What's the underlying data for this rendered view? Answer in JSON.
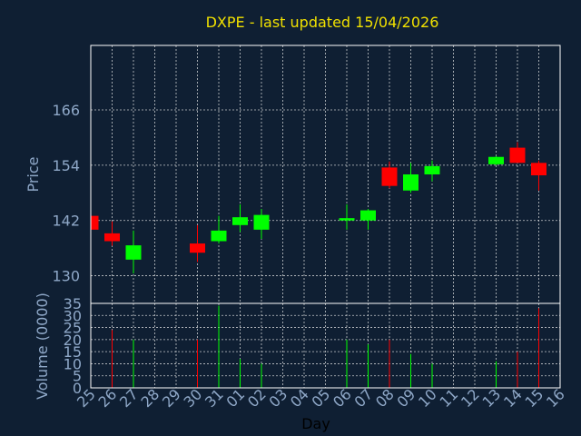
{
  "chart_data": {
    "type": "candlestick",
    "title": "DXPE - last updated 15/04/2026",
    "xlabel": "Day",
    "price_panel": {
      "ylabel": "Price",
      "ylim": [
        124,
        180
      ],
      "yticks": [
        130,
        142,
        154,
        166
      ]
    },
    "volume_panel": {
      "ylabel": "Volume (0000)",
      "ylim": [
        0,
        35
      ],
      "yticks": [
        0,
        5,
        10,
        15,
        20,
        25,
        30,
        35
      ]
    },
    "x_tick_labels": [
      "25",
      "26",
      "27",
      "28",
      "29",
      "30",
      "31",
      "01",
      "02",
      "03",
      "04",
      "05",
      "06",
      "07",
      "08",
      "09",
      "10",
      "11",
      "12",
      "13",
      "14",
      "15",
      "16"
    ],
    "grid": true,
    "colors": {
      "background": "#0f1f33",
      "plot_border": "#ffffff",
      "title": "#f0e000",
      "tick_text": "#8fa8c8",
      "up": "#00ff00",
      "down": "#ff0000"
    },
    "candles": [
      {
        "day": 0,
        "open": 143.0,
        "high": 144.0,
        "low": 139.0,
        "close": 140.0,
        "volume": 0
      },
      {
        "day": 1,
        "open": 139.2,
        "high": 141.8,
        "low": 136.5,
        "close": 137.5,
        "volume": 24
      },
      {
        "day": 2,
        "open": 133.5,
        "high": 139.8,
        "low": 130.5,
        "close": 136.6,
        "volume": 20
      },
      {
        "day": 5,
        "open": 137.0,
        "high": 141.0,
        "low": 133.0,
        "close": 135.0,
        "volume": 20
      },
      {
        "day": 6,
        "open": 137.5,
        "high": 143.0,
        "low": 137.0,
        "close": 139.8,
        "volume": 34
      },
      {
        "day": 7,
        "open": 141.0,
        "high": 145.5,
        "low": 139.5,
        "close": 142.7,
        "volume": 12
      },
      {
        "day": 8,
        "open": 140.0,
        "high": 144.5,
        "low": 138.0,
        "close": 143.2,
        "volume": 10
      },
      {
        "day": 12,
        "open": 142.0,
        "high": 145.5,
        "low": 140.0,
        "close": 142.5,
        "volume": 20
      },
      {
        "day": 13,
        "open": 142.0,
        "high": 144.5,
        "low": 140.0,
        "close": 144.2,
        "volume": 18
      },
      {
        "day": 14,
        "open": 153.5,
        "high": 154.8,
        "low": 149.0,
        "close": 149.5,
        "volume": 20
      },
      {
        "day": 15,
        "open": 148.5,
        "high": 154.5,
        "low": 148.0,
        "close": 152.0,
        "volume": 14
      },
      {
        "day": 16,
        "open": 152.0,
        "high": 155.0,
        "low": 150.5,
        "close": 153.8,
        "volume": 10
      },
      {
        "day": 19,
        "open": 154.2,
        "high": 156.0,
        "low": 154.0,
        "close": 155.8,
        "volume": 11
      },
      {
        "day": 20,
        "open": 157.8,
        "high": 159.0,
        "low": 154.5,
        "close": 154.5,
        "volume": 15
      },
      {
        "day": 21,
        "open": 154.5,
        "high": 155.0,
        "low": 148.5,
        "close": 151.8,
        "volume": 33
      }
    ]
  }
}
